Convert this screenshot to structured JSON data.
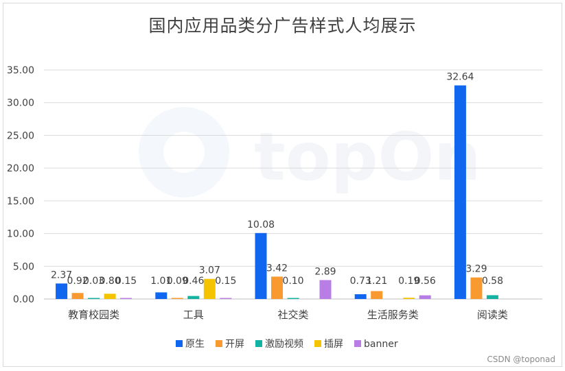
{
  "chart_data": {
    "type": "bar",
    "title": "国内应用品类分广告样式人均展示",
    "categories": [
      "教育校园类",
      "工具",
      "社交类",
      "生活服务类",
      "阅读类"
    ],
    "series": [
      {
        "name": "原生",
        "color": "#1166f0",
        "values": [
          2.37,
          1.01,
          10.08,
          0.73,
          32.64
        ]
      },
      {
        "name": "开屏",
        "color": "#f89a2f",
        "values": [
          0.92,
          0.09,
          3.42,
          1.21,
          3.29
        ]
      },
      {
        "name": "激励视频",
        "color": "#14b2a0",
        "values": [
          0.03,
          0.46,
          0.1,
          0.0,
          0.58
        ]
      },
      {
        "name": "插屏",
        "color": "#f5c400",
        "values": [
          0.8,
          3.07,
          0.0,
          0.19,
          0.0
        ]
      },
      {
        "name": "banner",
        "color": "#b87ee6",
        "values": [
          0.15,
          0.15,
          2.89,
          0.56,
          0.0
        ]
      }
    ],
    "data_labels": [
      [
        "2.37",
        "0.92",
        "0.03",
        "0.80",
        "0.15"
      ],
      [
        "1.01",
        "0.09",
        "0.46",
        "3.07",
        "0.15"
      ],
      [
        "10.08",
        "3.42",
        "0.10",
        "",
        "2.89"
      ],
      [
        "0.73",
        "1.21",
        "",
        "0.19",
        "0.56"
      ],
      [
        "32.64",
        "3.29",
        "0.58",
        "",
        ""
      ]
    ],
    "yticks": [
      "0.00",
      "5.00",
      "10.00",
      "15.00",
      "20.00",
      "25.00",
      "30.00",
      "35.00"
    ],
    "ylim": [
      0,
      35
    ],
    "grid": true,
    "legend_position": "bottom",
    "watermark_logo_text": "topOn"
  },
  "footer": {
    "credit": "CSDN @toponad"
  }
}
